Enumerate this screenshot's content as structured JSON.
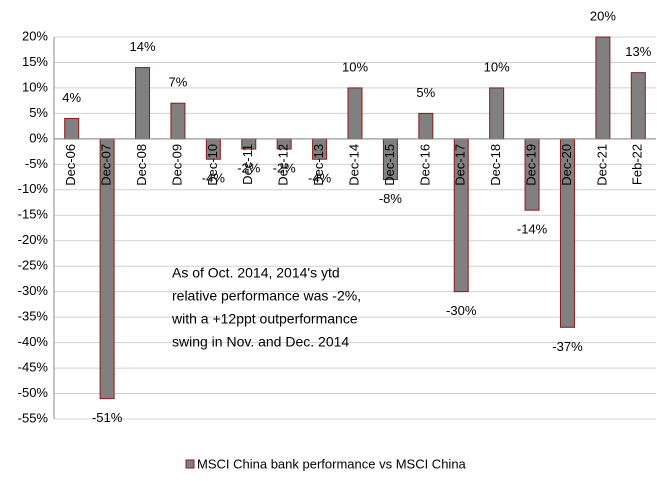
{
  "chart_data": {
    "type": "bar",
    "categories": [
      "Dec-06",
      "Dec-07",
      "Dec-08",
      "Dec-09",
      "Dec-10",
      "Dec-11",
      "Dec-12",
      "Dec-13",
      "Dec-14",
      "Dec-15",
      "Dec-16",
      "Dec-17",
      "Dec-18",
      "Dec-19",
      "Dec-20",
      "Dec-21",
      "Feb-22"
    ],
    "series": [
      {
        "name": "MSCI China bank performance vs MSCI China",
        "color": "#808080",
        "edge_color": "#8b1a1a",
        "values": [
          4,
          -51,
          14,
          7,
          -4,
          -2,
          -2,
          -4,
          10,
          -8,
          5,
          -30,
          10,
          -14,
          -37,
          20,
          13
        ],
        "value_labels": [
          "4%",
          "-51%",
          "14%",
          "7%",
          "-4%",
          "-2%",
          "-2%",
          "-4%",
          "10%",
          "-8%",
          "5%",
          "-30%",
          "10%",
          "-14%",
          "-37%",
          "20%",
          "13%"
        ]
      }
    ],
    "ylim": [
      -55,
      20
    ],
    "yticks": [
      {
        "value": 20,
        "label": "20%"
      },
      {
        "value": 15,
        "label": "15%"
      },
      {
        "value": 10,
        "label": "10%"
      },
      {
        "value": 5,
        "label": "5%"
      },
      {
        "value": 0,
        "label": "0%"
      },
      {
        "value": -5,
        "label": "-5%"
      },
      {
        "value": -10,
        "label": "-10%"
      },
      {
        "value": -15,
        "label": "-15%"
      },
      {
        "value": -20,
        "label": "-20%"
      },
      {
        "value": -25,
        "label": "-25%"
      },
      {
        "value": -30,
        "label": "-30%"
      },
      {
        "value": -35,
        "label": "-35%"
      },
      {
        "value": -40,
        "label": "-40%"
      },
      {
        "value": -45,
        "label": "-45%"
      },
      {
        "value": -50,
        "label": "-50%"
      },
      {
        "value": -55,
        "label": "-55%"
      }
    ],
    "grid": true,
    "legend": "bottom",
    "annotation": [
      "As of Oct. 2014, 2014's ytd",
      "relative performance  was -2%,",
      "with a +12ppt outperformance",
      "swing in Nov. and Dec. 2014"
    ]
  }
}
